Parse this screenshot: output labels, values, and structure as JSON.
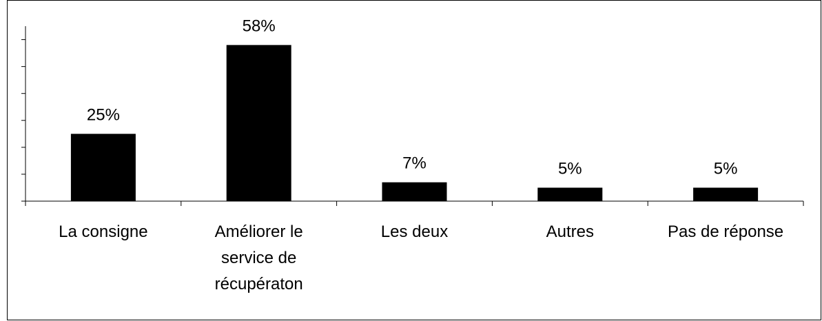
{
  "chart_data": {
    "type": "bar",
    "categories": [
      "La consigne",
      "Améliorer le service de récupératon",
      "Les deux",
      "Autres",
      "Pas de réponse"
    ],
    "values": [
      25,
      58,
      7,
      5,
      5
    ],
    "value_labels": [
      "25%",
      "58%",
      "7%",
      "5%",
      "5%"
    ],
    "color": "#000000",
    "ylim": [
      0,
      65
    ],
    "yticks": [
      0,
      10,
      20,
      30,
      40,
      50,
      60
    ]
  }
}
